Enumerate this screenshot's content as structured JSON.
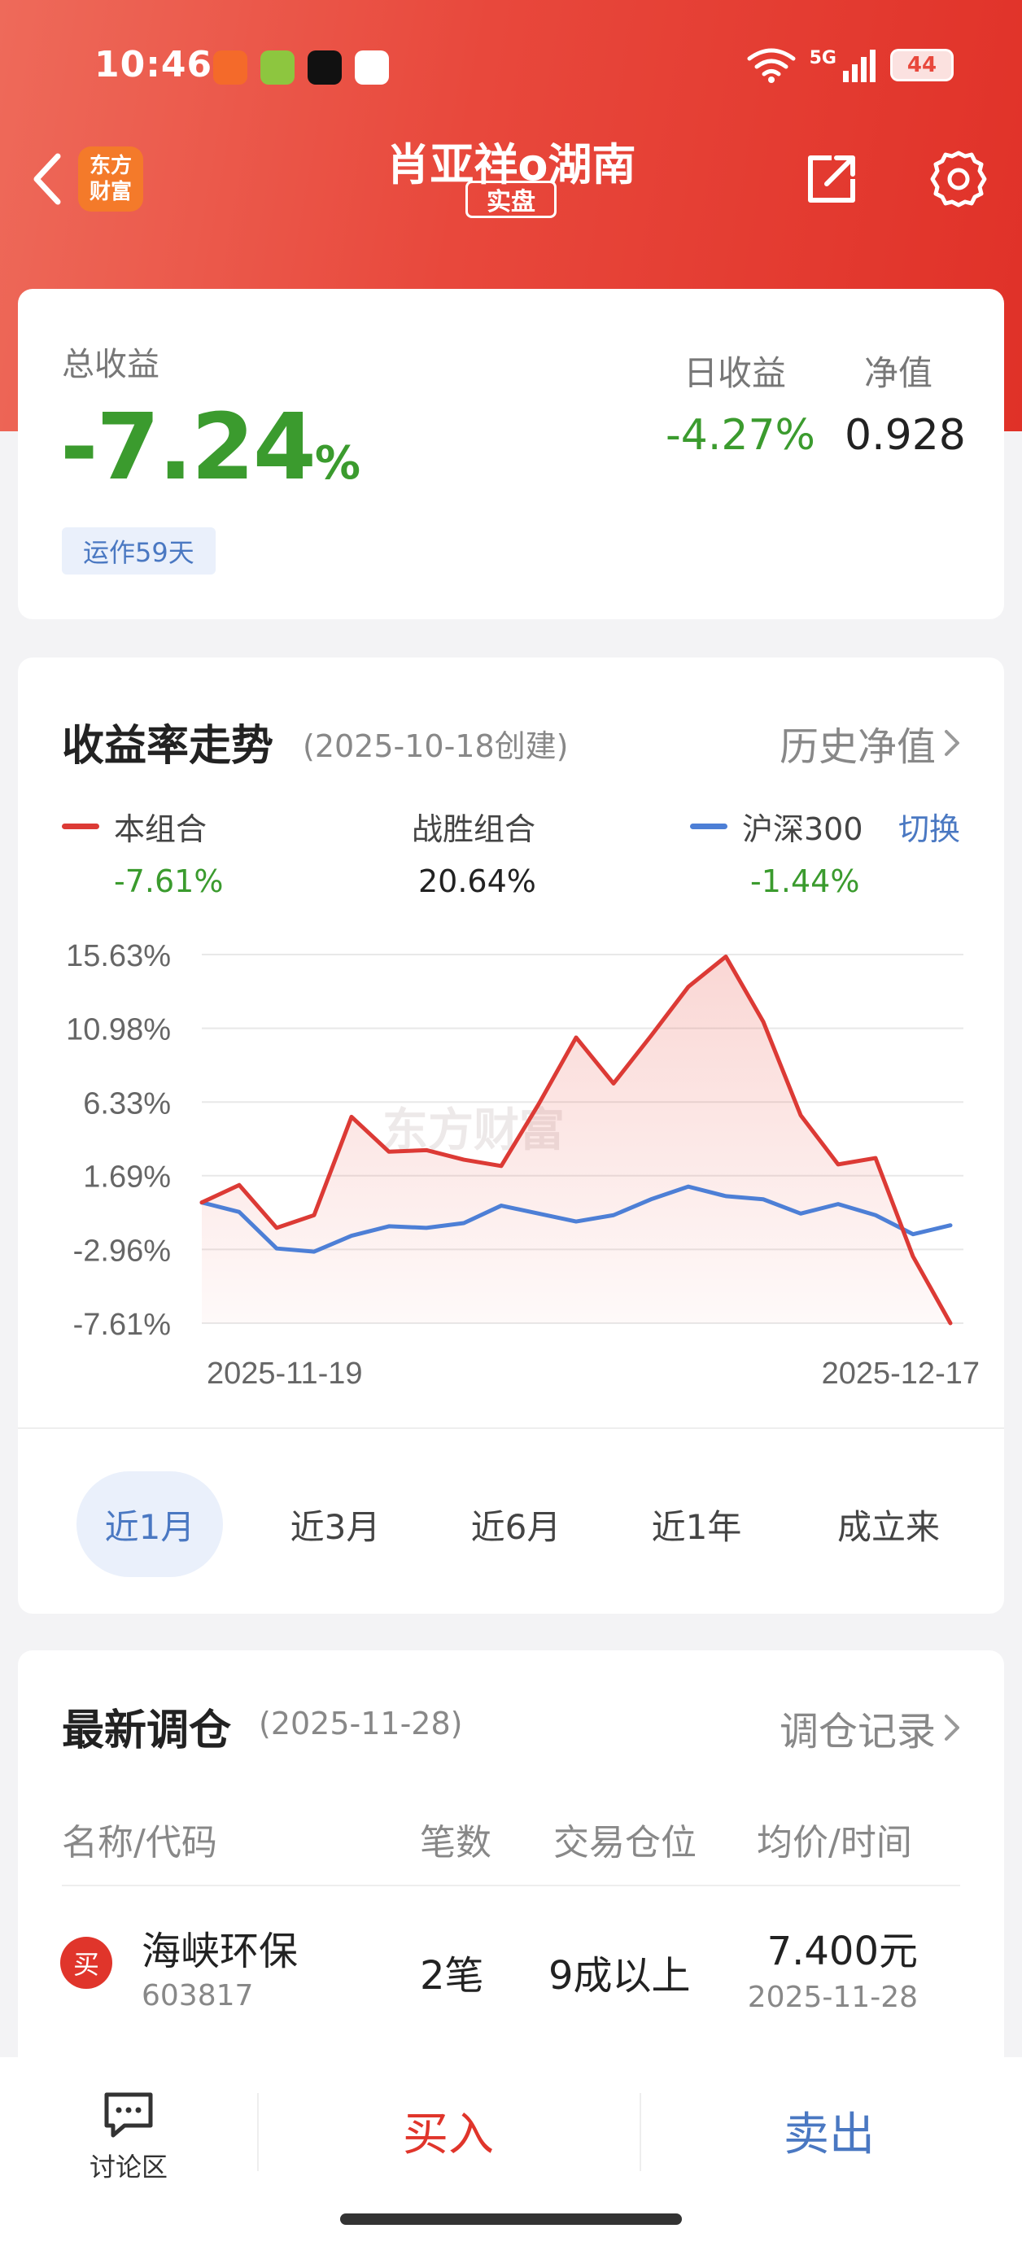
{
  "status_bar": {
    "time": "10:46",
    "network": "5G",
    "battery": "44"
  },
  "nav": {
    "brand_line1": "东方",
    "brand_line2": "财富",
    "title": "肖亚祥o湖南",
    "badge": "实盘"
  },
  "summary": {
    "total_label": "总收益",
    "total_value": "-7.24",
    "total_unit": "%",
    "run_days": "运作59天",
    "daily_label": "日收益",
    "daily_value": "-4.27%",
    "nav_label": "净值",
    "nav_value": "0.928"
  },
  "trend": {
    "title": "收益率走势",
    "created": "(2025-10-18创建)",
    "history_link": "历史净值",
    "switch_label": "切换",
    "watermark": "东方财富"
  },
  "colors": {
    "portfolio": "#dc3a35",
    "index": "#4d7fd6",
    "green": "#3b9b2e",
    "accent_blue": "#4a78c2"
  },
  "chart_data": {
    "type": "line",
    "x_start": "2025-11-19",
    "x_end": "2025-12-17",
    "ylim": [
      -7.61,
      15.63
    ],
    "y_ticks": [
      "15.63%",
      "10.98%",
      "6.33%",
      "1.69%",
      "-2.96%",
      "-7.61%"
    ],
    "y_tick_values": [
      15.63,
      10.98,
      6.33,
      1.69,
      -2.96,
      -7.61
    ],
    "x_tick_labels": [
      "2025-11-19",
      "2025-12-17"
    ],
    "grid": true,
    "series": [
      {
        "name": "本组合",
        "legend_value": "-7.61%",
        "color": "#dc3a35",
        "values": [
          0.0,
          1.1,
          -1.6,
          -0.8,
          5.4,
          3.2,
          3.3,
          2.7,
          2.3,
          6.2,
          10.4,
          7.5,
          10.5,
          13.6,
          15.5,
          11.4,
          5.5,
          2.4,
          2.8,
          -3.4,
          -7.61
        ]
      },
      {
        "name": "沪深300",
        "legend_value": "-1.44%",
        "color": "#4d7fd6",
        "values": [
          0.0,
          -0.6,
          -2.9,
          -3.1,
          -2.1,
          -1.5,
          -1.6,
          -1.3,
          -0.2,
          -0.7,
          -1.2,
          -0.8,
          0.2,
          1.0,
          0.4,
          0.2,
          -0.7,
          -0.1,
          -0.8,
          -2.0,
          -1.44
        ]
      }
    ],
    "benchmark": {
      "name": "战胜组合",
      "value": "20.64%"
    }
  },
  "ranges": [
    "近1月",
    "近3月",
    "近6月",
    "近1年",
    "成立来"
  ],
  "trade": {
    "title": "最新调仓",
    "date": "(2025-11-28)",
    "link": "调仓记录",
    "headers": {
      "name": "名称/代码",
      "count": "笔数",
      "position": "交易仓位",
      "price": "均价/时间"
    },
    "rows": [
      {
        "action": "买",
        "name": "海峡环保",
        "code": "603817",
        "count": "2笔",
        "position": "9成以上",
        "price": "7.400元",
        "time": "2025-11-28"
      }
    ]
  },
  "bottom": {
    "discuss": "讨论区",
    "buy": "买入",
    "sell": "卖出"
  }
}
